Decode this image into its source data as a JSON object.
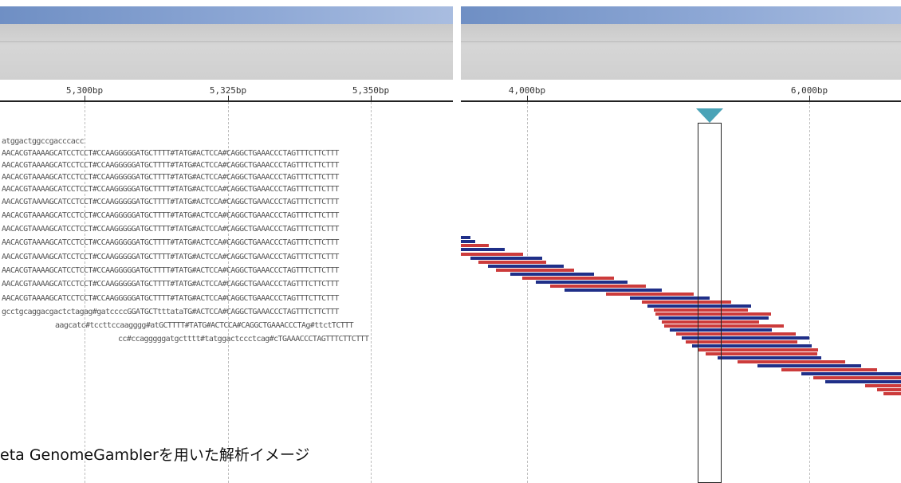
{
  "left_view": {
    "ruler_ticks": [
      {
        "label": "5,300bp"
      },
      {
        "label": "5,325bp"
      },
      {
        "label": "5,350bp"
      }
    ],
    "sequences": [
      "atggactggccgacccacc",
      "AACACGTAAAAGCATCCTCCT#CCAAGGGGGATGCTTTT#TATG#ACTCCA#CAGGCTGAAACCCTAGTTTCTTCTTT",
      "AACACGTAAAAGCATCCTCCT#CCAAGGGGGATGCTTTT#TATG#ACTCCA#CAGGCTGAAACCCTAGTTTCTTCTTT",
      "AACACGTAAAAGCATCCTCCT#CCAAGGGGGATGCTTTT#TATG#ACTCCA#CAGGCTGAAACCCTAGTTTCTTCTTT",
      "AACACGTAAAAGCATCCTCCT#CCAAGGGGGATGCTTTT#TATG#ACTCCA#CAGGCTGAAACCCTAGTTTCTTCTTT",
      "AACACGTAAAAGCATCCTCCT#CCAAGGGGGATGCTTTT#TATG#ACTCCA#CAGGCTGAAACCCTAGTTTCTTCTTT",
      "AACACGTAAAAGCATCCTCCT#CCAAGGGGGATGCTTTT#TATG#ACTCCA#CAGGCTGAAACCCTAGTTTCTTCTTT",
      "AACACGTAAAAGCATCCTCCT#CCAAGGGGGATGCTTTT#TATG#ACTCCA#CAGGCTGAAACCCTAGTTTCTTCTTT",
      "AACACGTAAAAGCATCCTCCT#CCAAGGGGGATGCTTTT#TATG#ACTCCA#CAGGCTGAAACCCTAGTTTCTTCTTT",
      "AACACGTAAAAGCATCCTCCT#CCAAGGGGGATGCTTTT#TATG#ACTCCA#CAGGCTGAAACCCTAGTTTCTTCTTT",
      "AACACGTAAAAGCATCCTCCT#CCAAGGGGGATGCTTTT#TATG#ACTCCA#CAGGCTGAAACCCTAGTTTCTTCTTT",
      "AACACGTAAAAGCATCCTCCT#CCAAGGGGGATGCTTTT#TATG#ACTCCA#CAGGCTGAAACCCTAGTTTCTTCTTT",
      "AACACGTAAAAGCATCCTCCT#CCAAGGGGGATGCTTTT#TATG#ACTCCA#CAGGCTGAAACCCTAGTTTCTTCTTT",
      "gcctgcaggacgactctagag#gatccccGGATGCTtttataTG#ACTCCA#CAGGCTGAAACCCTAGTTTCTTCTTT",
      "aagcatc#tccttccaagggg#atGCTTTT#TATG#ACTCCA#CAGGCTGAAACCCTAg#ttctTCTTT",
      "cc#ccagggggatgctttt#tatggactccctcag#cTGAAACCCTAGTTTCTTCTTT"
    ],
    "caption": "eta GenomeGamblerを用いた解析イメージ"
  },
  "right_view": {
    "ruler_ticks": [
      {
        "label": "4,000bp"
      },
      {
        "label": "6,000bp"
      }
    ],
    "marker_icon": "triangle-down-icon",
    "colors": {
      "forward": "#cc3b3b",
      "reverse": "#1f2f88",
      "marker": "#4aa3b7"
    }
  }
}
